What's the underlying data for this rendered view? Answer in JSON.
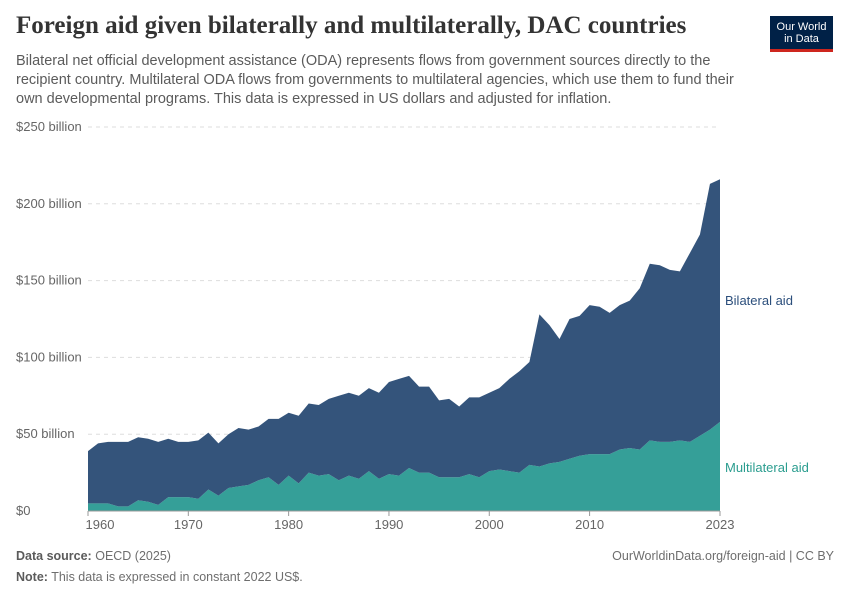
{
  "title": "Foreign aid given bilaterally and multilaterally, DAC countries",
  "subtitle": "Bilateral net official development assistance (ODA) represents flows from government sources directly to the recipient country. Multilateral ODA flows from governments to multilateral agencies, which use them to fund their own developmental programs. This data is expressed in US dollars and adjusted for inflation.",
  "logo": {
    "line1": "Our World",
    "line2": "in Data"
  },
  "footer": {
    "source_label": "Data source:",
    "source": "OECD (2025)",
    "url": "OurWorldinData.org/foreign-aid | CC BY",
    "note_label": "Note:",
    "note": "This data is expressed in constant 2022 US$."
  },
  "chart_data": {
    "type": "area",
    "stacked": true,
    "ylim": [
      0,
      250
    ],
    "yticks": [
      0,
      50,
      100,
      150,
      200,
      250
    ],
    "ytick_labels": [
      "$0",
      "$50 billion",
      "$100 billion",
      "$150 billion",
      "$200 billion",
      "$250 billion"
    ],
    "xticks": [
      1960,
      1970,
      1980,
      1990,
      2000,
      2010,
      2023
    ],
    "grid": "horizontal dashed",
    "legend": "inline-right",
    "x": [
      1960,
      1961,
      1962,
      1963,
      1964,
      1965,
      1966,
      1967,
      1968,
      1969,
      1970,
      1971,
      1972,
      1973,
      1974,
      1975,
      1976,
      1977,
      1978,
      1979,
      1980,
      1981,
      1982,
      1983,
      1984,
      1985,
      1986,
      1987,
      1988,
      1989,
      1990,
      1991,
      1992,
      1993,
      1994,
      1995,
      1996,
      1997,
      1998,
      1999,
      2000,
      2001,
      2002,
      2003,
      2004,
      2005,
      2006,
      2007,
      2008,
      2009,
      2010,
      2011,
      2012,
      2013,
      2014,
      2015,
      2016,
      2017,
      2018,
      2019,
      2020,
      2021,
      2022,
      2023
    ],
    "series": [
      {
        "name": "Multilateral aid",
        "color": "#359f98",
        "values": [
          5,
          5,
          5,
          3,
          3,
          7,
          6,
          4,
          9,
          9,
          9,
          8,
          14,
          10,
          15,
          16,
          17,
          20,
          22,
          17,
          23,
          18,
          25,
          23,
          24,
          20,
          23,
          21,
          26,
          21,
          24,
          23,
          28,
          25,
          25,
          22,
          22,
          22,
          24,
          22,
          26,
          27,
          26,
          25,
          30,
          29,
          31,
          32,
          34,
          36,
          37,
          37,
          37,
          40,
          41,
          40,
          46,
          45,
          45,
          46,
          45,
          49,
          53,
          58
        ]
      },
      {
        "name": "Bilateral aid",
        "color": "#34547b",
        "values": [
          34,
          39,
          40,
          42,
          42,
          41,
          41,
          41,
          38,
          36,
          36,
          38,
          37,
          34,
          35,
          38,
          36,
          35,
          38,
          43,
          41,
          44,
          45,
          46,
          49,
          55,
          54,
          54,
          54,
          56,
          60,
          63,
          60,
          56,
          56,
          50,
          51,
          46,
          50,
          52,
          51,
          53,
          60,
          66,
          67,
          99,
          90,
          80,
          91,
          91,
          97,
          96,
          92,
          94,
          96,
          105,
          115,
          115,
          112,
          110,
          123,
          131,
          160,
          158
        ]
      }
    ]
  }
}
